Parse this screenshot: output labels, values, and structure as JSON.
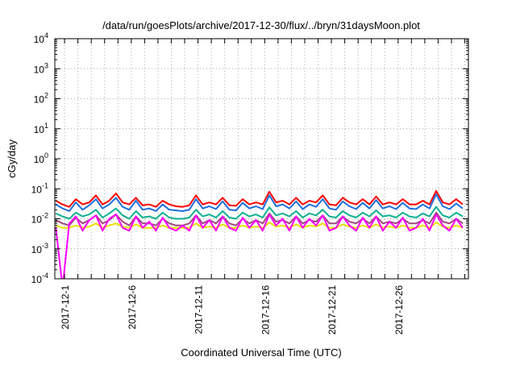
{
  "chart_data": {
    "type": "line",
    "title": "/data/run/goesPlots/archive/2017-12-30/flux/../bryn/31daysMoon.plot",
    "xlabel": "Coordinated Universal Time (UTC)",
    "ylabel": "cGy/day",
    "yscale": "log",
    "ylim": [
      0.0001,
      10000
    ],
    "xlim_days": [
      0.27,
      31.27
    ],
    "y_ticks": [
      {
        "value": 10000,
        "base": "10",
        "exp": "4"
      },
      {
        "value": 1000,
        "base": "10",
        "exp": "3"
      },
      {
        "value": 100,
        "base": "10",
        "exp": "2"
      },
      {
        "value": 10,
        "base": "10",
        "exp": "1"
      },
      {
        "value": 1,
        "base": "10",
        "exp": "0"
      },
      {
        "value": 0.1,
        "base": "10",
        "exp": "-1"
      },
      {
        "value": 0.01,
        "base": "10",
        "exp": "-2"
      },
      {
        "value": 0.001,
        "base": "10",
        "exp": "-3"
      },
      {
        "value": 0.0001,
        "base": "10",
        "exp": "-4"
      }
    ],
    "x_ticks": [
      {
        "day": 1,
        "label": "2017-12-1"
      },
      {
        "day": 6,
        "label": "2017-12-6"
      },
      {
        "day": 11,
        "label": "2017-12-11"
      },
      {
        "day": 16,
        "label": "2017-12-16"
      },
      {
        "day": 21,
        "label": "2017-12-21"
      },
      {
        "day": 26,
        "label": "2017-12-26"
      }
    ],
    "grid": true,
    "x_start_day": 0.35,
    "x_step_day": 0.5,
    "series": [
      {
        "name": "red",
        "color": "#ff0000",
        "values": [
          0.04,
          0.03,
          0.025,
          0.045,
          0.03,
          0.035,
          0.06,
          0.03,
          0.04,
          0.07,
          0.035,
          0.03,
          0.05,
          0.028,
          0.03,
          0.025,
          0.04,
          0.03,
          0.026,
          0.025,
          0.028,
          0.06,
          0.03,
          0.035,
          0.03,
          0.05,
          0.028,
          0.027,
          0.045,
          0.03,
          0.035,
          0.03,
          0.08,
          0.035,
          0.04,
          0.03,
          0.05,
          0.03,
          0.04,
          0.035,
          0.06,
          0.03,
          0.028,
          0.05,
          0.035,
          0.03,
          0.045,
          0.03,
          0.055,
          0.03,
          0.035,
          0.03,
          0.045,
          0.03,
          0.03,
          0.04,
          0.03,
          0.085,
          0.035,
          0.03,
          0.045,
          0.03
        ]
      },
      {
        "name": "blue",
        "color": "#1f6fe0",
        "values": [
          0.03,
          0.022,
          0.018,
          0.035,
          0.02,
          0.028,
          0.045,
          0.022,
          0.03,
          0.05,
          0.025,
          0.02,
          0.04,
          0.02,
          0.022,
          0.018,
          0.03,
          0.02,
          0.019,
          0.018,
          0.02,
          0.045,
          0.022,
          0.026,
          0.021,
          0.038,
          0.02,
          0.019,
          0.034,
          0.022,
          0.026,
          0.021,
          0.06,
          0.026,
          0.03,
          0.022,
          0.038,
          0.021,
          0.03,
          0.025,
          0.045,
          0.022,
          0.02,
          0.038,
          0.026,
          0.021,
          0.034,
          0.022,
          0.042,
          0.022,
          0.026,
          0.021,
          0.034,
          0.022,
          0.021,
          0.03,
          0.022,
          0.065,
          0.026,
          0.021,
          0.032,
          0.022
        ]
      },
      {
        "name": "teal",
        "color": "#10b090",
        "values": [
          0.015,
          0.012,
          0.01,
          0.016,
          0.012,
          0.014,
          0.02,
          0.011,
          0.015,
          0.022,
          0.013,
          0.01,
          0.018,
          0.011,
          0.012,
          0.01,
          0.016,
          0.011,
          0.01,
          0.01,
          0.011,
          0.02,
          0.012,
          0.014,
          0.011,
          0.018,
          0.011,
          0.01,
          0.016,
          0.012,
          0.014,
          0.011,
          0.024,
          0.013,
          0.015,
          0.012,
          0.018,
          0.011,
          0.015,
          0.013,
          0.02,
          0.012,
          0.011,
          0.018,
          0.013,
          0.011,
          0.016,
          0.012,
          0.019,
          0.012,
          0.013,
          0.011,
          0.016,
          0.012,
          0.011,
          0.015,
          0.012,
          0.025,
          0.013,
          0.011,
          0.016,
          0.012
        ]
      },
      {
        "name": "purple",
        "color": "#a04880",
        "values": [
          0.009,
          0.007,
          0.006,
          0.011,
          0.007,
          0.009,
          0.013,
          0.007,
          0.009,
          0.014,
          0.008,
          0.006,
          0.012,
          0.007,
          0.007,
          0.006,
          0.01,
          0.007,
          0.006,
          0.006,
          0.007,
          0.013,
          0.007,
          0.009,
          0.007,
          0.012,
          0.007,
          0.006,
          0.01,
          0.007,
          0.009,
          0.007,
          0.015,
          0.008,
          0.009,
          0.007,
          0.012,
          0.007,
          0.009,
          0.008,
          0.013,
          0.007,
          0.007,
          0.012,
          0.008,
          0.007,
          0.01,
          0.007,
          0.012,
          0.007,
          0.008,
          0.007,
          0.01,
          0.007,
          0.007,
          0.009,
          0.007,
          0.016,
          0.008,
          0.007,
          0.01,
          0.007
        ]
      },
      {
        "name": "yellow",
        "color": "#e8e000",
        "values": [
          0.006,
          0.005,
          0.005,
          0.006,
          0.005,
          0.0055,
          0.007,
          0.005,
          0.006,
          0.007,
          0.0055,
          0.005,
          0.0065,
          0.005,
          0.005,
          0.005,
          0.006,
          0.005,
          0.005,
          0.005,
          0.005,
          0.007,
          0.005,
          0.0055,
          0.005,
          0.0065,
          0.005,
          0.005,
          0.006,
          0.005,
          0.0055,
          0.005,
          0.0075,
          0.0055,
          0.006,
          0.005,
          0.0065,
          0.005,
          0.006,
          0.0055,
          0.007,
          0.005,
          0.005,
          0.0065,
          0.0055,
          0.005,
          0.006,
          0.005,
          0.0065,
          0.005,
          0.0055,
          0.005,
          0.006,
          0.005,
          0.005,
          0.006,
          0.005,
          0.0075,
          0.0055,
          0.005,
          0.006,
          0.005
        ]
      },
      {
        "name": "magenta",
        "color": "#ff00ff",
        "values": [
          0.005,
          5e-05,
          0.007,
          0.012,
          0.004,
          0.009,
          0.013,
          0.004,
          0.01,
          0.014,
          0.005,
          0.004,
          0.012,
          0.005,
          0.008,
          0.004,
          0.011,
          0.005,
          0.004,
          0.006,
          0.004,
          0.013,
          0.005,
          0.009,
          0.004,
          0.012,
          0.005,
          0.004,
          0.011,
          0.005,
          0.009,
          0.004,
          0.014,
          0.006,
          0.01,
          0.004,
          0.012,
          0.005,
          0.01,
          0.006,
          0.013,
          0.004,
          0.005,
          0.012,
          0.006,
          0.004,
          0.011,
          0.005,
          0.012,
          0.004,
          0.008,
          0.005,
          0.011,
          0.004,
          0.005,
          0.01,
          0.004,
          0.014,
          0.006,
          0.004,
          0.01,
          0.005
        ]
      }
    ]
  }
}
